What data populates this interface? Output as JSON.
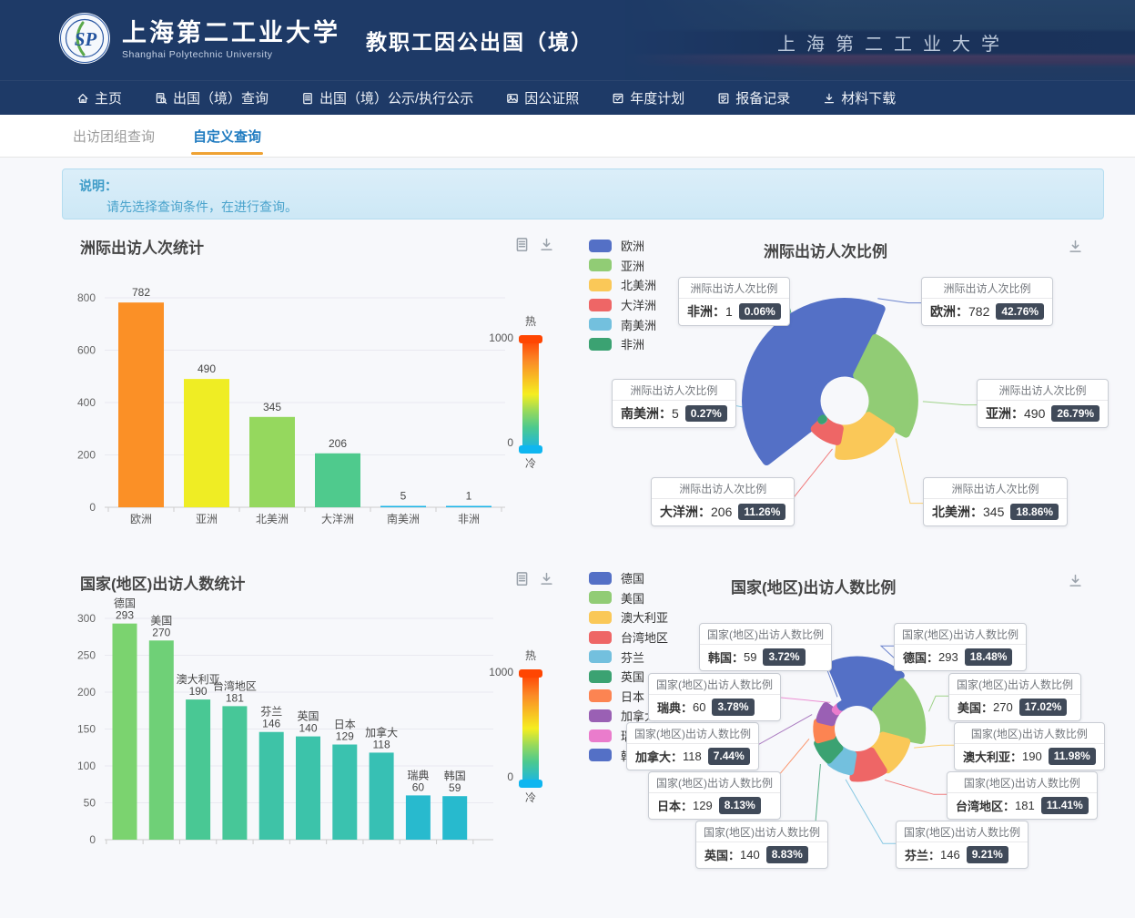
{
  "header": {
    "logo_text": "SP",
    "univ_name_zh": "上海第二工业大学",
    "univ_name_en": "Shanghai Polytechnic University",
    "app_title": "教职工因公出国（境）",
    "banner_caption": "上海第二工业大学"
  },
  "nav": {
    "items": [
      {
        "label": "主页",
        "icon": "home-icon"
      },
      {
        "label": "出国（境）查询",
        "icon": "doc-search-icon"
      },
      {
        "label": "出国（境）公示/执行公示",
        "icon": "doc-icon"
      },
      {
        "label": "因公证照",
        "icon": "photo-icon"
      },
      {
        "label": "年度计划",
        "icon": "calendar-check-icon"
      },
      {
        "label": "报备记录",
        "icon": "record-check-icon"
      },
      {
        "label": "材料下载",
        "icon": "download-icon"
      }
    ]
  },
  "tabs": [
    {
      "label": "出访团组查询",
      "active": false
    },
    {
      "label": "自定义查询",
      "active": true
    }
  ],
  "notice": {
    "title": "说明：",
    "body": "请先选择查询条件，在进行查询。"
  },
  "visual_map": {
    "hot": "热",
    "cold": "冷",
    "max": "1000",
    "min": "0"
  },
  "colors": {
    "header_bg": "#1e3a67",
    "tab_active": "#1f7bc0",
    "tab_underline": "#efa233",
    "badge_bg": "#404a59",
    "palette": [
      "#5470c6",
      "#91cc75",
      "#fac858",
      "#ee6666",
      "#73c0de",
      "#3ba272",
      "#fc8452",
      "#9a60b4",
      "#ea7ccc",
      "#5470c6"
    ],
    "heat_gradient": [
      [
        0,
        "#18b4e9"
      ],
      [
        0.2,
        "#4cc98f"
      ],
      [
        0.35,
        "#97d95c"
      ],
      [
        0.5,
        "#f5ee20"
      ],
      [
        0.8,
        "#fb8a26"
      ],
      [
        1,
        "#ff3f02"
      ]
    ]
  },
  "chart_data": [
    {
      "type": "bar",
      "title": "洲际出访人次统计",
      "categories": [
        "欧洲",
        "亚洲",
        "北美洲",
        "大洋洲",
        "南美洲",
        "非洲"
      ],
      "values": [
        782,
        490,
        345,
        206,
        5,
        1
      ],
      "ylim": [
        0,
        800
      ],
      "yticks": [
        0,
        200,
        400,
        600,
        800
      ],
      "color_scale": {
        "min": 0,
        "max": 1000,
        "hot": "热",
        "cold": "冷"
      },
      "grid": true,
      "legend_position": "none"
    },
    {
      "type": "pie",
      "style": "rose",
      "title": "洲际出访人次比例",
      "series_name": "洲际出访人次比例",
      "legend_position": "left",
      "legend": [
        "欧洲",
        "亚洲",
        "北美洲",
        "大洋洲",
        "南美洲",
        "非洲"
      ],
      "items": [
        {
          "name": "欧洲",
          "value": 782,
          "percent": "42.76%"
        },
        {
          "name": "亚洲",
          "value": 490,
          "percent": "26.79%"
        },
        {
          "name": "北美洲",
          "value": 345,
          "percent": "18.86%"
        },
        {
          "name": "大洋洲",
          "value": 206,
          "percent": "11.26%"
        },
        {
          "name": "南美洲",
          "value": 5,
          "percent": "0.27%"
        },
        {
          "name": "非洲",
          "value": 1,
          "percent": "0.06%"
        }
      ]
    },
    {
      "type": "bar",
      "title": "国家(地区)出访人数统计",
      "categories": [
        "德国",
        "美国",
        "澳大利亚",
        "台湾地区",
        "芬兰",
        "英国",
        "日本",
        "加拿大",
        "瑞典",
        "韩国"
      ],
      "values": [
        293,
        270,
        190,
        181,
        146,
        140,
        129,
        118,
        60,
        59
      ],
      "ylim": [
        0,
        300
      ],
      "yticks": [
        0,
        50,
        100,
        150,
        200,
        250,
        300
      ],
      "color_scale": {
        "min": 0,
        "max": 1000,
        "hot": "热",
        "cold": "冷"
      },
      "grid": true,
      "legend_position": "none"
    },
    {
      "type": "pie",
      "style": "rose",
      "title": "国家(地区)出访人数比例",
      "series_name": "国家(地区)出访人数比例",
      "legend_position": "left",
      "legend": [
        "德国",
        "美国",
        "澳大利亚",
        "台湾地区",
        "芬兰",
        "英国",
        "日本",
        "加拿大",
        "瑞典",
        "韩国"
      ],
      "items": [
        {
          "name": "德国",
          "value": 293,
          "percent": "18.48%"
        },
        {
          "name": "美国",
          "value": 270,
          "percent": "17.02%"
        },
        {
          "name": "澳大利亚",
          "value": 190,
          "percent": "11.98%"
        },
        {
          "name": "台湾地区",
          "value": 181,
          "percent": "11.41%"
        },
        {
          "name": "芬兰",
          "value": 146,
          "percent": "9.21%"
        },
        {
          "name": "英国",
          "value": 140,
          "percent": "8.83%"
        },
        {
          "name": "日本",
          "value": 129,
          "percent": "8.13%"
        },
        {
          "name": "加拿大",
          "value": 118,
          "percent": "7.44%"
        },
        {
          "name": "瑞典",
          "value": 60,
          "percent": "3.78%"
        },
        {
          "name": "韩国",
          "value": 59,
          "percent": "3.72%"
        }
      ]
    }
  ]
}
